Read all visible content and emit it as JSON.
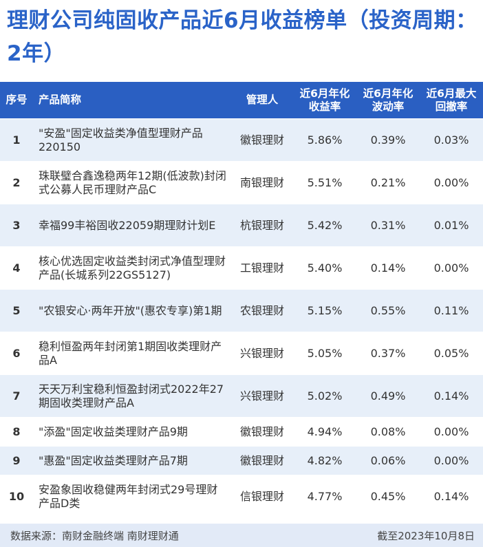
{
  "title": "理财公司纯固收产品近6月收益榜单（投资周期：2年）",
  "header": {
    "rank": "序号",
    "name": "产品简称",
    "manager": "管理人",
    "return_line1": "近6月年化",
    "return_line2": "收益率",
    "vol_line1": "近6月年化",
    "vol_line2": "波动率",
    "dd_line1": "近6月最大",
    "dd_line2": "回撤率"
  },
  "rows": [
    {
      "rank": "1",
      "name": "\"安盈\"固定收益类净值型理财产品220150",
      "manager": "徽银理财",
      "return": "5.86%",
      "volatility": "0.39%",
      "drawdown": "0.03%"
    },
    {
      "rank": "2",
      "name": "珠联璧合鑫逸稳两年12期(低波款)封闭式公募人民币理财产品C",
      "manager": "南银理财",
      "return": "5.51%",
      "volatility": "0.21%",
      "drawdown": "0.00%"
    },
    {
      "rank": "3",
      "name": "幸福99丰裕固收22059期理财计划E",
      "manager": "杭银理财",
      "return": "5.42%",
      "volatility": "0.31%",
      "drawdown": "0.01%"
    },
    {
      "rank": "4",
      "name": "核心优选固定收益类封闭式净值型理财产品(长城系列22GS5127)",
      "manager": "工银理财",
      "return": "5.40%",
      "volatility": "0.14%",
      "drawdown": "0.00%"
    },
    {
      "rank": "5",
      "name": "\"农银安心·两年开放\"(惠农专享)第1期",
      "manager": "农银理财",
      "return": "5.15%",
      "volatility": "0.55%",
      "drawdown": "0.11%"
    },
    {
      "rank": "6",
      "name": "稳利恒盈两年封闭第1期固收类理财产品A",
      "manager": "兴银理财",
      "return": "5.05%",
      "volatility": "0.37%",
      "drawdown": "0.05%"
    },
    {
      "rank": "7",
      "name": "天天万利宝稳利恒盈封闭式2022年27期固收类理财产品A",
      "manager": "兴银理财",
      "return": "5.02%",
      "volatility": "0.49%",
      "drawdown": "0.14%"
    },
    {
      "rank": "8",
      "name": "\"添盈\"固定收益类理财产品9期",
      "manager": "徽银理财",
      "return": "4.94%",
      "volatility": "0.08%",
      "drawdown": "0.00%"
    },
    {
      "rank": "9",
      "name": "\"惠盈\"固定收益类理财产品7期",
      "manager": "徽银理财",
      "return": "4.82%",
      "volatility": "0.06%",
      "drawdown": "0.00%"
    },
    {
      "rank": "10",
      "name": "安盈象固收稳健两年封闭式29号理财产品D类",
      "manager": "信银理财",
      "return": "4.77%",
      "volatility": "0.45%",
      "drawdown": "0.14%"
    }
  ],
  "footer": {
    "source": "数据来源：南财金融终端 南财理财通",
    "date": "截至2023年10月8日"
  },
  "chart_data": {
    "type": "table",
    "title": "理财公司纯固收产品近6月收益榜单（投资周期：2年）",
    "columns": [
      "序号",
      "产品简称",
      "管理人",
      "近6月年化收益率",
      "近6月年化波动率",
      "近6月最大回撤率"
    ],
    "values": [
      [
        1,
        "\"安盈\"固定收益类净值型理财产品220150",
        "徽银理财",
        5.86,
        0.39,
        0.03
      ],
      [
        2,
        "珠联璧合鑫逸稳两年12期(低波款)封闭式公募人民币理财产品C",
        "南银理财",
        5.51,
        0.21,
        0.0
      ],
      [
        3,
        "幸福99丰裕固收22059期理财计划E",
        "杭银理财",
        5.42,
        0.31,
        0.01
      ],
      [
        4,
        "核心优选固定收益类封闭式净值型理财产品(长城系列22GS5127)",
        "工银理财",
        5.4,
        0.14,
        0.0
      ],
      [
        5,
        "\"农银安心·两年开放\"(惠农专享)第1期",
        "农银理财",
        5.15,
        0.55,
        0.11
      ],
      [
        6,
        "稳利恒盈两年封闭第1期固收类理财产品A",
        "兴银理财",
        5.05,
        0.37,
        0.05
      ],
      [
        7,
        "天天万利宝稳利恒盈封闭式2022年27期固收类理财产品A",
        "兴银理财",
        5.02,
        0.49,
        0.14
      ],
      [
        8,
        "\"添盈\"固定收益类理财产品9期",
        "徽银理财",
        4.94,
        0.08,
        0.0
      ],
      [
        9,
        "\"惠盈\"固定收益类理财产品7期",
        "徽银理财",
        4.82,
        0.06,
        0.0
      ],
      [
        10,
        "安盈象固收稳健两年封闭式29号理财产品D类",
        "信银理财",
        4.77,
        0.45,
        0.14
      ]
    ]
  }
}
